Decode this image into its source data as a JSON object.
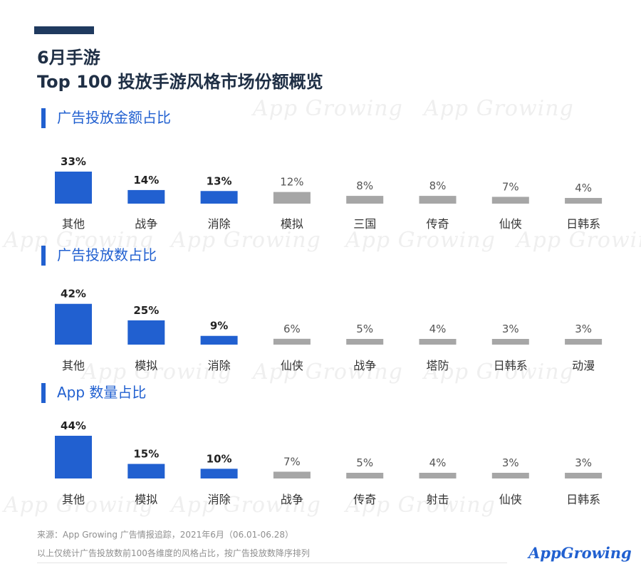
{
  "header": {
    "title_line1": "6月手游",
    "title_line2": "Top 100 投放手游风格市场份额概览"
  },
  "colors": {
    "highlight": "#2160d0",
    "muted": "#a6a6a6",
    "accent_dark": "#1f3a5f"
  },
  "watermark_text": "App Growing",
  "chart_data": [
    {
      "type": "bar",
      "title": "广告投放金额占比",
      "categories": [
        "其他",
        "战争",
        "消除",
        "模拟",
        "三国",
        "传奇",
        "仙侠",
        "日韩系"
      ],
      "values": [
        33,
        14,
        13,
        12,
        8,
        8,
        7,
        4
      ],
      "labels": [
        "33%",
        "14%",
        "13%",
        "12%",
        "8%",
        "8%",
        "7%",
        "4%"
      ],
      "highlighted_count": 3,
      "ylim": [
        0,
        44
      ]
    },
    {
      "type": "bar",
      "title": "广告投放数占比",
      "categories": [
        "其他",
        "模拟",
        "消除",
        "仙侠",
        "战争",
        "塔防",
        "日韩系",
        "动漫"
      ],
      "values": [
        42,
        25,
        9,
        6,
        5,
        4,
        3,
        3
      ],
      "labels": [
        "42%",
        "25%",
        "9%",
        "6%",
        "5%",
        "4%",
        "3%",
        "3%"
      ],
      "highlighted_count": 3,
      "ylim": [
        0,
        44
      ]
    },
    {
      "type": "bar",
      "title": "App 数量占比",
      "categories": [
        "其他",
        "模拟",
        "消除",
        "战争",
        "传奇",
        "射击",
        "仙侠",
        "日韩系"
      ],
      "values": [
        44,
        15,
        10,
        7,
        5,
        4,
        3,
        3
      ],
      "labels": [
        "44%",
        "15%",
        "10%",
        "7%",
        "5%",
        "4%",
        "3%",
        "3%"
      ],
      "highlighted_count": 3,
      "ylim": [
        0,
        44
      ]
    }
  ],
  "footer": {
    "source": "来源：App Growing 广告情报追踪，2021年6月（06.01-06.28）",
    "note": "以上仅统计广告投放数前100各维度的风格占比，按广告投放数降序排列",
    "logo_text": "AppGrowing"
  }
}
